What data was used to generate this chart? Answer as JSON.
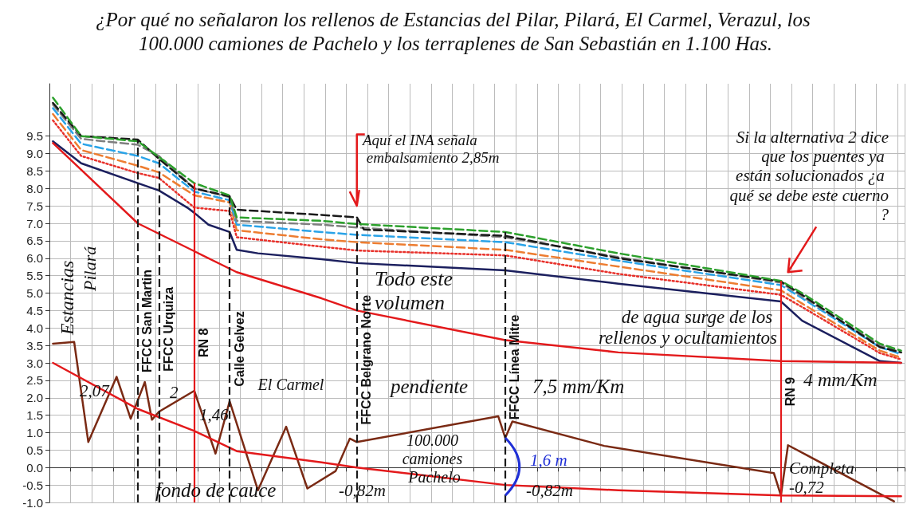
{
  "chart_data": {
    "type": "line",
    "title": "¿Por qué no señalaron los rellenos de Estancias del Pilar, Pilará, El Carmel, Verazul, los 100.000 camiones de Pachelo y los terraplenes de San Sebastián en 1.100 Has.",
    "categories": [
      null,
      null,
      null,
      null,
      null,
      null,
      null,
      null,
      null,
      null,
      null,
      null,
      null,
      null,
      null,
      null,
      null,
      null,
      null,
      null,
      null,
      null,
      null,
      null,
      null,
      null,
      null,
      null,
      null,
      null,
      null,
      null,
      null,
      null,
      null,
      null,
      null,
      null,
      null,
      null,
      null,
      null,
      null,
      null,
      null,
      null,
      null,
      null,
      null,
      null,
      null,
      null,
      null,
      null,
      null,
      null,
      null,
      null,
      null,
      null,
      null,
      null,
      null,
      null,
      null,
      null,
      null,
      null,
      null,
      null,
      null,
      null,
      null,
      null,
      null,
      null,
      null,
      null,
      null,
      null,
      null,
      null,
      null,
      null,
      null,
      null,
      null,
      null,
      null,
      null,
      null,
      null,
      null,
      null,
      null,
      null,
      null,
      null,
      null,
      null,
      null,
      null,
      null,
      null,
      null,
      null,
      null,
      null,
      null,
      null,
      null,
      null,
      null,
      null,
      null,
      null,
      null,
      null,
      null,
      null,
      null
    ],
    "ylim": [
      -1,
      11
    ],
    "yticks": [
      {
        "value": -1,
        "label": "-1.0"
      },
      -0.5,
      {
        "value": 0,
        "label": "0.0"
      },
      0.5,
      {
        "value": 1,
        "label": "1.0"
      },
      1.5,
      {
        "value": 2,
        "label": "2.0"
      },
      2.5,
      {
        "value": 3,
        "label": "3.0"
      },
      3.5,
      {
        "value": 4,
        "label": "4.0"
      },
      4.5,
      {
        "value": 5,
        "label": "5.0"
      },
      5.5,
      {
        "value": 6,
        "label": "6.0"
      },
      6.5,
      {
        "value": 7,
        "label": "7.0"
      },
      7.5,
      {
        "value": 8,
        "label": "8.0"
      },
      8.5,
      {
        "value": 9,
        "label": "9.0"
      },
      9.5
    ],
    "tick_labels": "y",
    "grid": true,
    "series": [
      {
        "color": "#1b1f5e",
        "line_style": "solid",
        "values": [
          9.35,
          null,
          null,
          null,
          8.72,
          null,
          null,
          null,
          null,
          null,
          null,
          null,
          8.15,
          null,
          null,
          7.94,
          null,
          null,
          null,
          7.45,
          7.3,
          null,
          6.96,
          null,
          null,
          6.75,
          6.24,
          null,
          null,
          6.14,
          null,
          null,
          null,
          null,
          null,
          null,
          null,
          null,
          5.97,
          null,
          null,
          null,
          null,
          5.86,
          null,
          null,
          null,
          null,
          null,
          null,
          null,
          null,
          null,
          null,
          null,
          null,
          null,
          null,
          null,
          null,
          null,
          null,
          null,
          null,
          5.65,
          null,
          null,
          null,
          null,
          null,
          null,
          null,
          null,
          null,
          null,
          null,
          null,
          null,
          null,
          null,
          5.27,
          null,
          null,
          null,
          null,
          null,
          null,
          null,
          null,
          null,
          null,
          null,
          null,
          null,
          null,
          null,
          null,
          null,
          null,
          null,
          null,
          null,
          null,
          4.76,
          null,
          null,
          4.21,
          null,
          null,
          null,
          null,
          null,
          null,
          null,
          null,
          null,
          null,
          3.05,
          null,
          null,
          3.0
        ]
      },
      {
        "color": "#e8312b",
        "line_style": "dotted",
        "values": [
          9.95,
          null,
          null,
          null,
          8.93,
          null,
          null,
          null,
          null,
          null,
          null,
          null,
          8.44,
          null,
          null,
          8.3,
          null,
          null,
          null,
          null,
          7.45,
          null,
          null,
          null,
          null,
          7.35,
          6.6,
          null,
          null,
          null,
          null,
          null,
          null,
          null,
          null,
          null,
          null,
          null,
          6.33,
          null,
          null,
          null,
          null,
          6.22,
          null,
          null,
          null,
          null,
          null,
          null,
          null,
          null,
          null,
          null,
          null,
          null,
          null,
          null,
          null,
          null,
          null,
          null,
          null,
          null,
          6.08,
          null,
          null,
          null,
          null,
          null,
          null,
          null,
          null,
          null,
          null,
          null,
          null,
          null,
          null,
          null,
          5.55,
          null,
          null,
          null,
          null,
          null,
          null,
          null,
          null,
          null,
          null,
          null,
          null,
          null,
          null,
          null,
          null,
          null,
          null,
          null,
          null,
          null,
          null,
          4.95,
          null,
          null,
          4.6,
          null,
          null,
          null,
          null,
          null,
          null,
          null,
          null,
          null,
          null,
          3.28,
          null,
          null,
          3.1
        ]
      },
      {
        "color": "#ed7d31",
        "line_style": "dashed",
        "values": [
          10.13,
          null,
          null,
          null,
          9.1,
          null,
          null,
          null,
          null,
          null,
          null,
          null,
          8.65,
          null,
          null,
          8.46,
          null,
          null,
          null,
          null,
          7.8,
          null,
          null,
          null,
          null,
          7.6,
          6.8,
          null,
          null,
          null,
          null,
          null,
          null,
          null,
          null,
          null,
          null,
          null,
          6.54,
          null,
          null,
          null,
          null,
          6.46,
          null,
          null,
          null,
          null,
          null,
          null,
          null,
          null,
          null,
          null,
          null,
          null,
          null,
          null,
          null,
          null,
          null,
          null,
          null,
          null,
          6.24,
          null,
          null,
          null,
          null,
          null,
          null,
          null,
          null,
          null,
          null,
          null,
          null,
          null,
          null,
          null,
          5.76,
          null,
          null,
          null,
          null,
          null,
          null,
          null,
          null,
          null,
          null,
          null,
          null,
          null,
          null,
          null,
          null,
          null,
          null,
          null,
          null,
          null,
          null,
          5.08,
          null,
          null,
          4.7,
          null,
          null,
          null,
          null,
          null,
          null,
          null,
          null,
          null,
          null,
          3.35,
          null,
          null,
          3.15
        ]
      },
      {
        "color": "#29a3e8",
        "line_style": "dashed",
        "values": [
          10.3,
          null,
          null,
          null,
          9.28,
          null,
          null,
          null,
          null,
          null,
          null,
          null,
          8.93,
          null,
          null,
          8.72,
          null,
          null,
          null,
          null,
          7.91,
          null,
          null,
          null,
          null,
          7.66,
          6.96,
          null,
          null,
          null,
          null,
          null,
          null,
          null,
          null,
          null,
          null,
          null,
          6.75,
          null,
          null,
          null,
          null,
          6.67,
          null,
          null,
          null,
          null,
          null,
          null,
          null,
          null,
          null,
          null,
          null,
          null,
          null,
          null,
          null,
          null,
          null,
          null,
          null,
          null,
          6.46,
          null,
          null,
          null,
          null,
          null,
          null,
          null,
          null,
          null,
          null,
          null,
          null,
          null,
          null,
          null,
          5.93,
          null,
          null,
          null,
          null,
          null,
          null,
          null,
          null,
          null,
          null,
          null,
          null,
          null,
          null,
          null,
          null,
          null,
          null,
          null,
          null,
          null,
          null,
          5.23,
          null,
          null,
          4.85,
          null,
          null,
          null,
          null,
          null,
          null,
          null,
          null,
          null,
          null,
          3.45,
          null,
          null,
          3.25
        ]
      },
      {
        "color": "#7f7f7f",
        "line_style": "dashed",
        "values": [
          10.4,
          null,
          null,
          null,
          9.42,
          null,
          null,
          null,
          null,
          null,
          null,
          null,
          9.25,
          null,
          null,
          8.93,
          null,
          null,
          null,
          null,
          8.0,
          null,
          null,
          null,
          null,
          7.75,
          7.07,
          null,
          null,
          null,
          null,
          null,
          null,
          null,
          null,
          null,
          null,
          null,
          6.96,
          null,
          null,
          null,
          null,
          6.88,
          null,
          null,
          null,
          null,
          null,
          null,
          null,
          null,
          null,
          null,
          null,
          null,
          null,
          null,
          null,
          null,
          null,
          null,
          null,
          null,
          6.6,
          null,
          null,
          null,
          null,
          null,
          null,
          null,
          null,
          null,
          null,
          null,
          null,
          null,
          null,
          null,
          6.03,
          null,
          null,
          null,
          null,
          null,
          null,
          null,
          null,
          null,
          null,
          null,
          null,
          null,
          null,
          null,
          null,
          null,
          null,
          null,
          null,
          null,
          null,
          5.3,
          null,
          null,
          4.9,
          null,
          null,
          null,
          null,
          null,
          null,
          null,
          null,
          null,
          null,
          3.5,
          null,
          null,
          3.3
        ]
      },
      {
        "color": "#1a1a1a",
        "line_style": "dashed",
        "values": [
          10.45,
          null,
          null,
          null,
          9.5,
          null,
          null,
          null,
          null,
          null,
          null,
          null,
          9.4,
          null,
          null,
          8.85,
          null,
          null,
          null,
          null,
          8.0,
          null,
          null,
          null,
          null,
          7.77,
          7.39,
          null,
          null,
          null,
          null,
          null,
          null,
          null,
          null,
          null,
          null,
          null,
          7.24,
          null,
          null,
          null,
          null,
          7.17,
          6.82,
          null,
          null,
          null,
          null,
          null,
          null,
          null,
          null,
          null,
          null,
          null,
          null,
          null,
          null,
          null,
          null,
          null,
          null,
          null,
          6.64,
          null,
          null,
          null,
          null,
          null,
          null,
          null,
          null,
          null,
          null,
          null,
          null,
          null,
          null,
          null,
          6.0,
          null,
          null,
          null,
          null,
          null,
          null,
          null,
          null,
          null,
          null,
          null,
          null,
          null,
          null,
          null,
          null,
          null,
          null,
          null,
          null,
          null,
          null,
          5.33,
          null,
          null,
          4.95,
          null,
          null,
          null,
          null,
          null,
          null,
          null,
          null,
          null,
          null,
          3.45,
          null,
          null,
          3.3
        ]
      },
      {
        "color": "#2ca02c",
        "line_style": "dashed",
        "values": [
          10.6,
          null,
          null,
          null,
          9.5,
          null,
          null,
          null,
          null,
          null,
          null,
          null,
          9.35,
          null,
          null,
          8.9,
          null,
          null,
          null,
          null,
          8.15,
          null,
          null,
          null,
          null,
          7.8,
          7.17,
          null,
          null,
          null,
          null,
          null,
          null,
          null,
          null,
          null,
          null,
          null,
          7.07,
          null,
          null,
          null,
          null,
          6.98,
          null,
          null,
          null,
          null,
          null,
          null,
          null,
          null,
          null,
          null,
          null,
          null,
          null,
          null,
          null,
          null,
          null,
          null,
          null,
          null,
          6.75,
          null,
          null,
          null,
          null,
          null,
          null,
          null,
          null,
          null,
          null,
          null,
          null,
          null,
          null,
          null,
          6.14,
          null,
          null,
          null,
          null,
          null,
          null,
          null,
          null,
          null,
          null,
          null,
          null,
          null,
          null,
          null,
          null,
          null,
          null,
          null,
          null,
          null,
          null,
          5.35,
          null,
          null,
          5.0,
          null,
          null,
          null,
          null,
          null,
          null,
          null,
          null,
          null,
          null,
          3.55,
          null,
          null,
          3.35
        ]
      },
      {
        "color": "#7a2a14",
        "line_style": "solid",
        "values": [
          3.55,
          null,
          null,
          3.6,
          null,
          0.73,
          null,
          null,
          null,
          2.6,
          null,
          1.4,
          null,
          2.45,
          1.37,
          1.6,
          null,
          null,
          null,
          null,
          2.2,
          null,
          null,
          0.4,
          null,
          1.9,
          null,
          null,
          null,
          -0.65,
          null,
          null,
          null,
          1.17,
          null,
          null,
          -0.6,
          null,
          null,
          null,
          -0.1,
          null,
          0.83,
          0.73,
          null,
          null,
          null,
          null,
          null,
          null,
          null,
          null,
          null,
          null,
          null,
          null,
          null,
          null,
          null,
          null,
          null,
          null,
          null,
          1.47,
          0.85,
          1.32,
          null,
          null,
          null,
          null,
          null,
          null,
          null,
          null,
          null,
          null,
          null,
          null,
          0.62,
          null,
          null,
          null,
          null,
          null,
          null,
          null,
          null,
          null,
          null,
          null,
          null,
          null,
          null,
          null,
          null,
          null,
          null,
          null,
          null,
          null,
          null,
          null,
          -0.16,
          -0.8,
          0.64,
          null,
          null,
          null,
          null,
          null,
          null,
          null,
          null,
          null,
          null,
          null,
          null,
          null,
          null,
          -0.97,
          null
        ]
      },
      {
        "color": "#e3191b",
        "line_style": "solid",
        "values": [
          9.3,
          null,
          null,
          null,
          null,
          null,
          null,
          null,
          null,
          null,
          null,
          null,
          7.0,
          null,
          null,
          null,
          null,
          null,
          null,
          null,
          6.2,
          null,
          null,
          null,
          null,
          null,
          5.6,
          null,
          null,
          null,
          null,
          null,
          null,
          null,
          null,
          null,
          null,
          null,
          4.85,
          null,
          null,
          null,
          null,
          4.5,
          null,
          null,
          null,
          null,
          null,
          null,
          null,
          null,
          null,
          null,
          null,
          null,
          null,
          null,
          null,
          null,
          null,
          null,
          null,
          null,
          3.65,
          null,
          null,
          null,
          null,
          null,
          null,
          null,
          null,
          null,
          null,
          null,
          null,
          null,
          null,
          null,
          3.3,
          null,
          null,
          null,
          null,
          null,
          null,
          null,
          null,
          null,
          null,
          null,
          null,
          null,
          null,
          null,
          null,
          null,
          null,
          null,
          null,
          null,
          null,
          3.05,
          null,
          null,
          null,
          null,
          null,
          null,
          null,
          null,
          null,
          null,
          null,
          null,
          null,
          null,
          null,
          null,
          3.0
        ]
      },
      {
        "color": "#e3191b",
        "line_style": "solid",
        "values": [
          3.0,
          null,
          null,
          null,
          null,
          null,
          null,
          null,
          null,
          null,
          null,
          null,
          1.68,
          null,
          null,
          null,
          null,
          null,
          null,
          null,
          1.05,
          null,
          null,
          null,
          null,
          null,
          0.47,
          null,
          null,
          null,
          null,
          null,
          null,
          null,
          null,
          null,
          null,
          null,
          0.15,
          null,
          null,
          null,
          null,
          0.0,
          null,
          null,
          null,
          null,
          null,
          null,
          null,
          null,
          null,
          null,
          null,
          null,
          null,
          null,
          null,
          null,
          null,
          null,
          null,
          null,
          -0.5,
          null,
          null,
          null,
          null,
          null,
          null,
          null,
          null,
          null,
          null,
          null,
          null,
          null,
          null,
          null,
          -0.65,
          null,
          null,
          null,
          null,
          null,
          null,
          null,
          null,
          null,
          null,
          null,
          null,
          null,
          null,
          null,
          null,
          null,
          null,
          null,
          null,
          null,
          null,
          -0.8,
          null,
          null,
          null,
          null,
          null,
          null,
          null,
          null,
          null,
          null,
          null,
          null,
          null,
          null,
          null,
          null,
          -0.82
        ]
      }
    ],
    "annotations": [
      "Aquí el INA señala embalsamiento 2,85m",
      "Si la alternativa 2 dice que los puentes ya están solucionados ¿a qué se debe este cuerno?",
      "Todo este volumen",
      "de agua surge de los rellenos y ocultamientos",
      "pendiente",
      "7,5 mm/Km",
      "4 mm/Km",
      "Estancias",
      "Pilará",
      "El Carmel",
      "fondo de cauce",
      "100.000 camiones Pachelo",
      "2,07",
      "2",
      "1,46",
      "-0,82m",
      "-0,82m",
      "1,6 m",
      "Completa -0,72",
      "FFCC San Martin",
      "FFCC Urquiza",
      "RN 8",
      "Calle Gelvez",
      "FFCC Belgrano Norte",
      "FFCC Línea Mitre",
      "RN 9"
    ]
  }
}
